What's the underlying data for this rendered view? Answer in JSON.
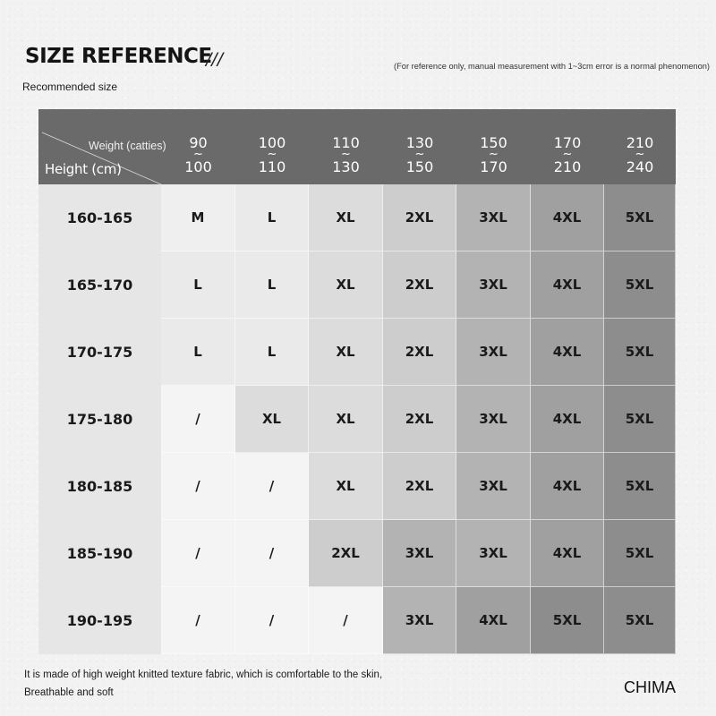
{
  "header": {
    "title": "SIZE REFERENCE",
    "decoration": "///",
    "note": "(For reference only, manual measurement with 1~3cm error is a normal phenomenon)",
    "subtitle": "Recommended size"
  },
  "table": {
    "weight_label": "Weight (catties)",
    "height_label": "Height (cm)",
    "weight_columns": [
      {
        "from": "90",
        "sep": "~",
        "to": "100"
      },
      {
        "from": "100",
        "sep": "~",
        "to": "110"
      },
      {
        "from": "110",
        "sep": "~",
        "to": "130"
      },
      {
        "from": "130",
        "sep": "~",
        "to": "150"
      },
      {
        "from": "150",
        "sep": "~",
        "to": "170"
      },
      {
        "from": "170",
        "sep": "~",
        "to": "210"
      },
      {
        "from": "210",
        "sep": "~",
        "to": "240"
      }
    ],
    "rows": [
      {
        "height": "160-165",
        "sizes": [
          "M",
          "L",
          "XL",
          "2XL",
          "3XL",
          "4XL",
          "5XL"
        ]
      },
      {
        "height": "165-170",
        "sizes": [
          "L",
          "L",
          "XL",
          "2XL",
          "3XL",
          "4XL",
          "5XL"
        ]
      },
      {
        "height": "170-175",
        "sizes": [
          "L",
          "L",
          "XL",
          "2XL",
          "3XL",
          "4XL",
          "5XL"
        ]
      },
      {
        "height": "175-180",
        "sizes": [
          "/",
          "XL",
          "XL",
          "2XL",
          "3XL",
          "4XL",
          "5XL"
        ]
      },
      {
        "height": "180-185",
        "sizes": [
          "/",
          "/",
          "XL",
          "2XL",
          "3XL",
          "4XL",
          "5XL"
        ]
      },
      {
        "height": "185-190",
        "sizes": [
          "/",
          "/",
          "2XL",
          "3XL",
          "3XL",
          "4XL",
          "5XL"
        ]
      },
      {
        "height": "190-195",
        "sizes": [
          "/",
          "/",
          "/",
          "3XL",
          "4XL",
          "5XL",
          "5XL"
        ]
      }
    ],
    "size_colors": {
      "/": "#f4f4f4",
      "M": "#efefef",
      "L": "#eaeaea",
      "XL": "#dcdcdc",
      "2XL": "#cdcdcd",
      "3XL": "#b3b3b3",
      "4XL": "#a0a0a0",
      "5XL": "#8d8d8d"
    },
    "header_color": "#6a6a6a"
  },
  "footer": {
    "line1": "It is made of high weight knitted texture fabric, which is comfortable to the skin,",
    "line2": "Breathable and soft",
    "brand": "CHIMA"
  }
}
